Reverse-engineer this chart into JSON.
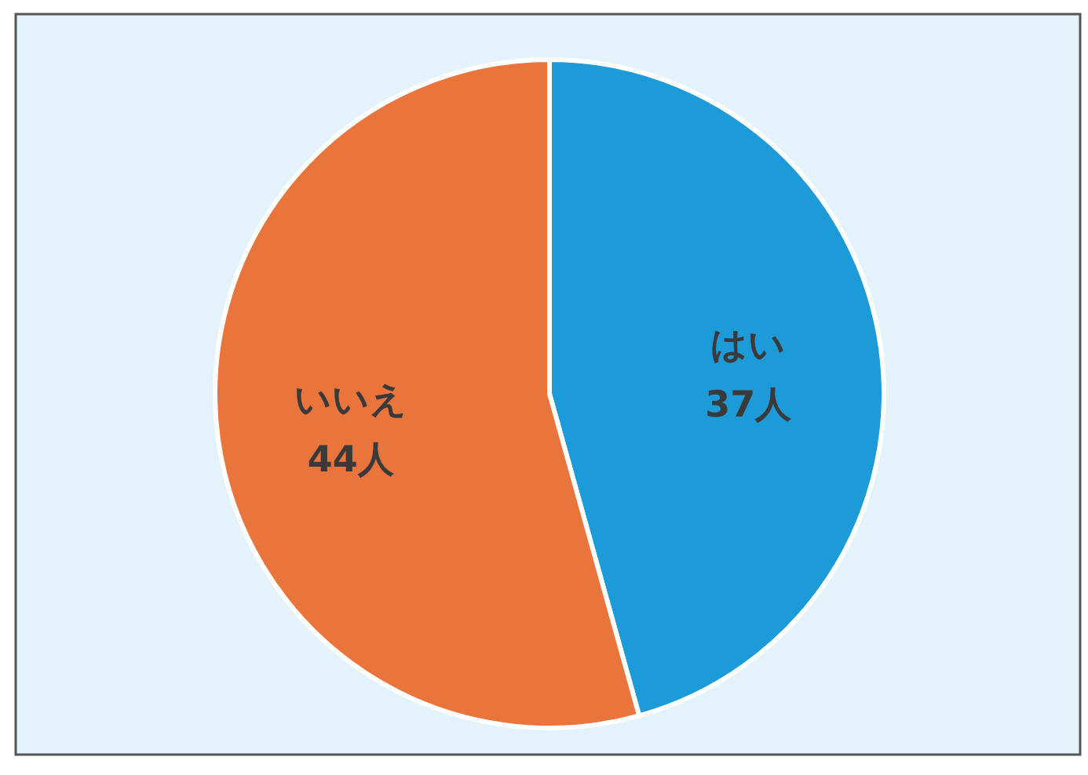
{
  "chart_data": {
    "type": "pie",
    "categories": [
      "はい",
      "いいえ"
    ],
    "values": [
      37,
      44
    ],
    "colors": [
      "#1c9bd8",
      "#e9743c"
    ],
    "value_labels": [
      "37人",
      "44人"
    ]
  }
}
